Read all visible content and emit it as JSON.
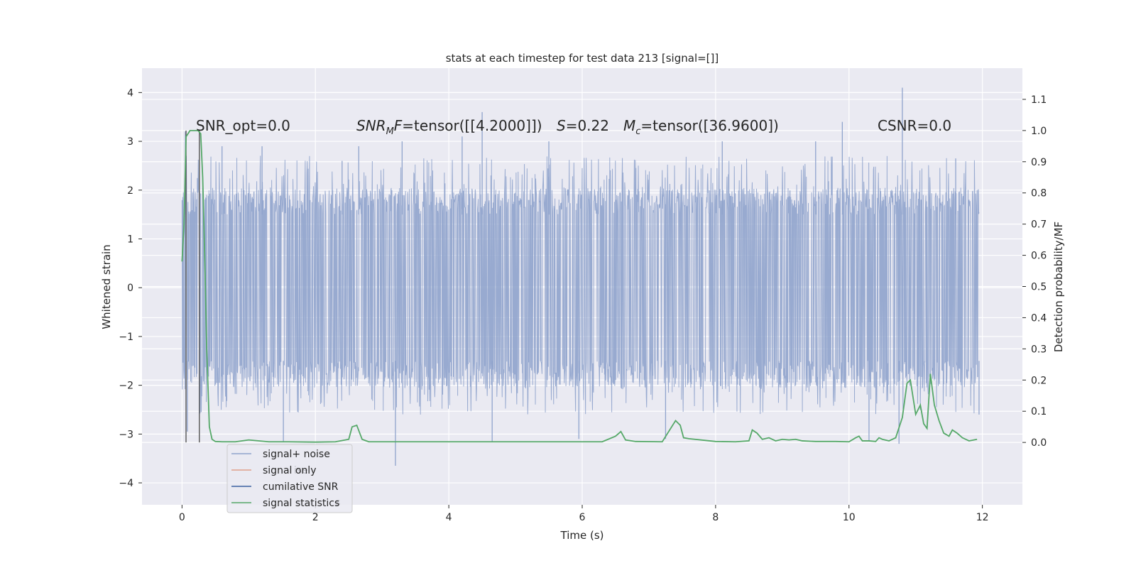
{
  "chart_data": {
    "type": "line",
    "title": "stats at each timestep for test data 213 [signal=[]]",
    "xlabel": "Time (s)",
    "ylabel": "Whitened strain",
    "y2label": "Detection probability/MF",
    "xlim": [
      -0.6,
      12.6
    ],
    "ylim": [
      -4.45,
      4.5
    ],
    "y2lim": [
      -0.2,
      1.2
    ],
    "xticks": [
      0,
      2,
      4,
      6,
      8,
      10,
      12
    ],
    "yticks": [
      -4,
      -3,
      -2,
      -1,
      0,
      1,
      2,
      3,
      4
    ],
    "y2ticks": [
      0.0,
      0.1,
      0.2,
      0.3,
      0.4,
      0.5,
      0.6,
      0.7,
      0.8,
      0.9,
      1.0,
      1.1
    ],
    "xtick_labels": [
      "0",
      "2",
      "4",
      "6",
      "8",
      "10",
      "12"
    ],
    "ytick_labels": [
      "−4",
      "−3",
      "−2",
      "−1",
      "0",
      "1",
      "2",
      "3",
      "4"
    ],
    "y2tick_labels": [
      "0.0",
      "0.1",
      "0.2",
      "0.3",
      "0.4",
      "0.5",
      "0.6",
      "0.7",
      "0.8",
      "0.9",
      "1.0",
      "1.1"
    ],
    "grid": true,
    "legend_position": "lower-left",
    "annotations": {
      "snr_opt": "SNR_opt=0.0",
      "snr_mf_prefix": "SNR",
      "snr_mf_sub": "M",
      "snr_mf_mid": "F",
      "snr_mf_rest": "=tensor([[4.2000]])",
      "s_label": "S",
      "s_value": "=0.22",
      "mc_label": "M",
      "mc_sub": "c",
      "mc_value": "=tensor([36.9600])",
      "csnr": "CSNR=0.0"
    },
    "legend": [
      {
        "label": "signal+ noise",
        "color": "#8fa3cc"
      },
      {
        "label": "signal only",
        "color": "#e0a08a"
      },
      {
        "label": "cumilative SNR",
        "color": "#3a5fa0"
      },
      {
        "label": "signal statistics",
        "color": "#55a868"
      }
    ],
    "legend_ghost": {
      "text_a": "ise",
      "text_b": "s"
    },
    "series": [
      {
        "name": "signal+ noise",
        "axis": "left",
        "color": "#8fa3cc",
        "x_range": [
          0,
          11.95
        ],
        "typical_range": [
          -1.5,
          1.5
        ],
        "spike_peaks": [
          {
            "x": 0.05,
            "y": 3.2
          },
          {
            "x": 0.08,
            "y": -2.95
          },
          {
            "x": 0.6,
            "y": 2.9
          },
          {
            "x": 1.2,
            "y": 2.9
          },
          {
            "x": 1.52,
            "y": -3.15
          },
          {
            "x": 2.4,
            "y": 2.6
          },
          {
            "x": 2.65,
            "y": 2.9
          },
          {
            "x": 3.2,
            "y": -3.65
          },
          {
            "x": 3.3,
            "y": 3.0
          },
          {
            "x": 4.2,
            "y": 3.1
          },
          {
            "x": 4.5,
            "y": 3.6
          },
          {
            "x": 4.65,
            "y": -3.15
          },
          {
            "x": 5.5,
            "y": 3.0
          },
          {
            "x": 5.95,
            "y": -3.1
          },
          {
            "x": 7.25,
            "y": -3.1
          },
          {
            "x": 8.1,
            "y": 3.0
          },
          {
            "x": 9.5,
            "y": 3.0
          },
          {
            "x": 9.9,
            "y": 3.4
          },
          {
            "x": 10.3,
            "y": -3.15
          },
          {
            "x": 10.8,
            "y": 4.1
          },
          {
            "x": 10.75,
            "y": -3.2
          },
          {
            "x": 11.6,
            "y": 2.65
          },
          {
            "x": 11.95,
            "y": -2.6
          }
        ]
      },
      {
        "name": "signal statistics",
        "axis": "right",
        "color": "#55a868",
        "x": [
          0,
          0.03,
          0.06,
          0.09,
          0.12,
          0.16,
          0.2,
          0.24,
          0.28,
          0.31,
          0.34,
          0.37,
          0.41,
          0.45,
          0.5,
          0.6,
          0.8,
          1.0,
          1.3,
          1.6,
          2.0,
          2.3,
          2.5,
          2.55,
          2.62,
          2.7,
          2.8,
          3.0,
          3.5,
          4.0,
          4.7,
          5.2,
          5.7,
          6.3,
          6.5,
          6.58,
          6.65,
          6.8,
          7.2,
          7.4,
          7.47,
          7.52,
          7.6,
          8.0,
          8.3,
          8.5,
          8.55,
          8.62,
          8.7,
          8.8,
          8.9,
          9.0,
          9.1,
          9.2,
          9.3,
          9.5,
          9.8,
          10.0,
          10.1,
          10.15,
          10.2,
          10.3,
          10.4,
          10.45,
          10.5,
          10.6,
          10.7,
          10.8,
          10.87,
          10.92,
          11.0,
          11.07,
          11.12,
          11.17,
          11.22,
          11.28,
          11.35,
          11.42,
          11.5,
          11.55,
          11.62,
          11.7,
          11.8,
          11.92
        ],
        "y": [
          0.58,
          0.7,
          0.98,
          0.99,
          1.0,
          1.0,
          1.0,
          1.0,
          0.99,
          0.85,
          0.6,
          0.3,
          0.05,
          0.01,
          0.003,
          0.002,
          0.002,
          0.008,
          0.002,
          0.002,
          0.001,
          0.002,
          0.01,
          0.05,
          0.055,
          0.01,
          0.002,
          0.002,
          0.002,
          0.002,
          0.002,
          0.002,
          0.002,
          0.002,
          0.02,
          0.035,
          0.008,
          0.003,
          0.002,
          0.07,
          0.055,
          0.015,
          0.012,
          0.003,
          0.002,
          0.005,
          0.04,
          0.03,
          0.01,
          0.015,
          0.005,
          0.01,
          0.008,
          0.01,
          0.005,
          0.003,
          0.003,
          0.002,
          0.015,
          0.02,
          0.005,
          0.005,
          0.003,
          0.015,
          0.01,
          0.005,
          0.015,
          0.08,
          0.19,
          0.2,
          0.09,
          0.12,
          0.06,
          0.045,
          0.22,
          0.12,
          0.07,
          0.03,
          0.02,
          0.04,
          0.03,
          0.015,
          0.005,
          0.01
        ]
      }
    ],
    "vertical_markers_x": [
      0.06,
      0.26
    ]
  }
}
